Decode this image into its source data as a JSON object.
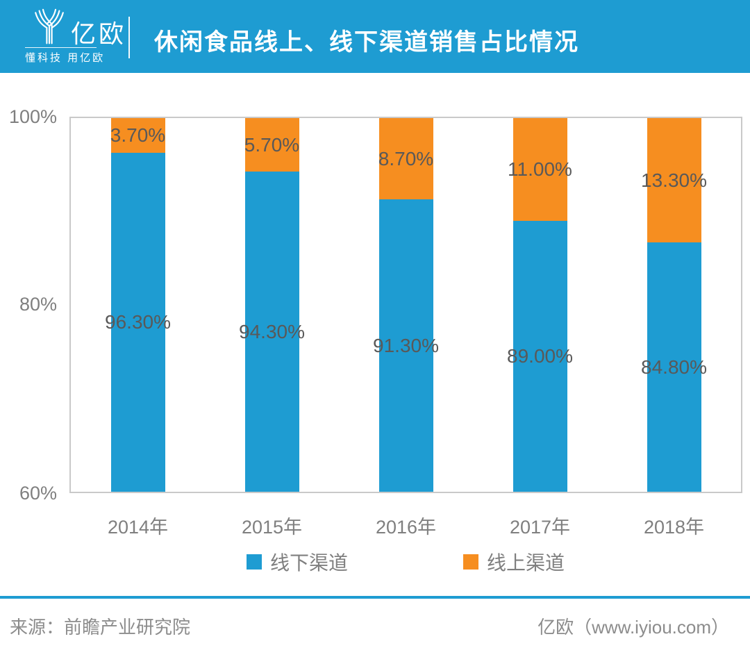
{
  "header": {
    "brand": "亿欧",
    "tagline": "懂科技 用亿欧",
    "title": "休闲食品线上、线下渠道销售占比情况"
  },
  "colors": {
    "brand_blue": "#1E9CD2",
    "bar_blue": "#1E9CD2",
    "bar_orange": "#F68E20",
    "data_label_gray": "#595959",
    "tick_gray": "#7F7F7F",
    "plot_border_gray": "#C9C9C9"
  },
  "chart_data": {
    "type": "bar",
    "stacked": true,
    "title": "休闲食品线上、线下渠道销售占比情况",
    "categories": [
      "2014年",
      "2015年",
      "2016年",
      "2017年",
      "2018年"
    ],
    "series": [
      {
        "name": "线下渠道",
        "color": "#1E9CD2",
        "values": [
          96.3,
          94.3,
          91.3,
          89.0,
          84.8
        ],
        "labels": [
          "96.30%",
          "94.30%",
          "91.30%",
          "89.00%",
          "84.80%"
        ]
      },
      {
        "name": "线上渠道",
        "color": "#F68E20",
        "values": [
          3.7,
          5.7,
          8.7,
          11.0,
          13.3
        ],
        "labels": [
          "3.70%",
          "5.70%",
          "8.70%",
          "11.00%",
          "13.30%"
        ]
      }
    ],
    "ylim": [
      60,
      100
    ],
    "yticks": [
      "100%",
      "80%",
      "60%"
    ],
    "grid": false,
    "legend_position": "bottom"
  },
  "footer": {
    "source": "来源：前瞻产业研究院",
    "brand_credit": "亿欧（www.iyiou.com）"
  }
}
